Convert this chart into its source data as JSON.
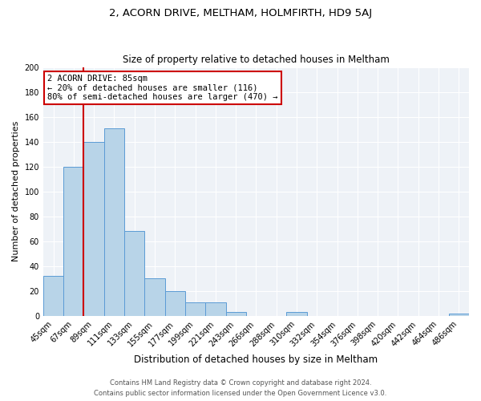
{
  "title": "2, ACORN DRIVE, MELTHAM, HOLMFIRTH, HD9 5AJ",
  "subtitle": "Size of property relative to detached houses in Meltham",
  "xlabel": "Distribution of detached houses by size in Meltham",
  "ylabel": "Number of detached properties",
  "bar_labels": [
    "45sqm",
    "67sqm",
    "89sqm",
    "111sqm",
    "133sqm",
    "155sqm",
    "177sqm",
    "199sqm",
    "221sqm",
    "243sqm",
    "266sqm",
    "288sqm",
    "310sqm",
    "332sqm",
    "354sqm",
    "376sqm",
    "398sqm",
    "420sqm",
    "442sqm",
    "464sqm",
    "486sqm"
  ],
  "bar_values": [
    32,
    120,
    140,
    151,
    68,
    30,
    20,
    11,
    11,
    3,
    0,
    0,
    3,
    0,
    0,
    0,
    0,
    0,
    0,
    0,
    2
  ],
  "bar_color": "#b8d4e8",
  "bar_edge_color": "#5b9bd5",
  "vline_x_index": 1.5,
  "vline_color": "#cc0000",
  "annotation_line1": "2 ACORN DRIVE: 85sqm",
  "annotation_line2": "← 20% of detached houses are smaller (116)",
  "annotation_line3": "80% of semi-detached houses are larger (470) →",
  "box_edge_color": "#cc0000",
  "ylim": [
    0,
    200
  ],
  "yticks": [
    0,
    20,
    40,
    60,
    80,
    100,
    120,
    140,
    160,
    180,
    200
  ],
  "footer1": "Contains HM Land Registry data © Crown copyright and database right 2024.",
  "footer2": "Contains public sector information licensed under the Open Government Licence v3.0.",
  "bg_color": "#eef2f7"
}
